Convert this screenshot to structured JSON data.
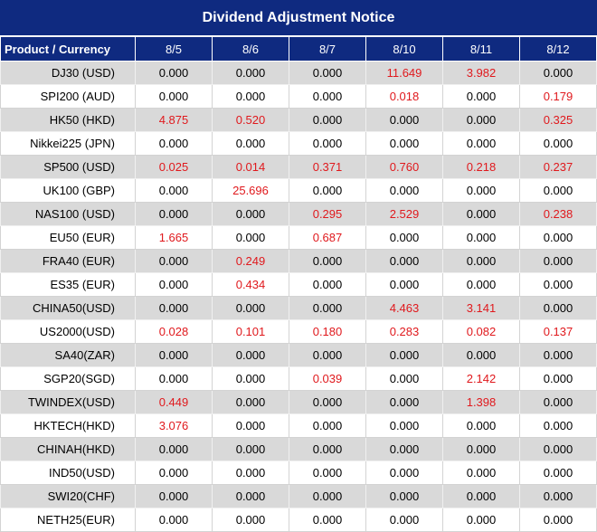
{
  "title": "Dividend Adjustment Notice",
  "colors": {
    "header_bg": "#0f2a80",
    "alt_row": "#d9d9d9",
    "nonzero": "#e0191d"
  },
  "header": [
    "Product / Currency",
    "8/5",
    "8/6",
    "8/7",
    "8/10",
    "8/11",
    "8/12"
  ],
  "rows": [
    {
      "product": "DJ30 (USD)",
      "values": [
        "0.000",
        "0.000",
        "0.000",
        "11.649",
        "3.982",
        "0.000"
      ]
    },
    {
      "product": "SPI200 (AUD)",
      "values": [
        "0.000",
        "0.000",
        "0.000",
        "0.018",
        "0.000",
        "0.179"
      ]
    },
    {
      "product": "HK50 (HKD)",
      "values": [
        "4.875",
        "0.520",
        "0.000",
        "0.000",
        "0.000",
        "0.325"
      ]
    },
    {
      "product": "Nikkei225 (JPN)",
      "values": [
        "0.000",
        "0.000",
        "0.000",
        "0.000",
        "0.000",
        "0.000"
      ]
    },
    {
      "product": "SP500 (USD)",
      "values": [
        "0.025",
        "0.014",
        "0.371",
        "0.760",
        "0.218",
        "0.237"
      ]
    },
    {
      "product": "UK100 (GBP)",
      "values": [
        "0.000",
        "25.696",
        "0.000",
        "0.000",
        "0.000",
        "0.000"
      ]
    },
    {
      "product": "NAS100 (USD)",
      "values": [
        "0.000",
        "0.000",
        "0.295",
        "2.529",
        "0.000",
        "0.238"
      ]
    },
    {
      "product": "EU50 (EUR)",
      "values": [
        "1.665",
        "0.000",
        "0.687",
        "0.000",
        "0.000",
        "0.000"
      ]
    },
    {
      "product": "FRA40 (EUR)",
      "values": [
        "0.000",
        "0.249",
        "0.000",
        "0.000",
        "0.000",
        "0.000"
      ]
    },
    {
      "product": "ES35 (EUR)",
      "values": [
        "0.000",
        "0.434",
        "0.000",
        "0.000",
        "0.000",
        "0.000"
      ]
    },
    {
      "product": "CHINA50(USD)",
      "values": [
        "0.000",
        "0.000",
        "0.000",
        "4.463",
        "3.141",
        "0.000"
      ]
    },
    {
      "product": "US2000(USD)",
      "values": [
        "0.028",
        "0.101",
        "0.180",
        "0.283",
        "0.082",
        "0.137"
      ]
    },
    {
      "product": "SA40(ZAR)",
      "values": [
        "0.000",
        "0.000",
        "0.000",
        "0.000",
        "0.000",
        "0.000"
      ]
    },
    {
      "product": "SGP20(SGD)",
      "values": [
        "0.000",
        "0.000",
        "0.039",
        "0.000",
        "2.142",
        "0.000"
      ]
    },
    {
      "product": "TWINDEX(USD)",
      "values": [
        "0.449",
        "0.000",
        "0.000",
        "0.000",
        "1.398",
        "0.000"
      ]
    },
    {
      "product": "HKTECH(HKD)",
      "values": [
        "3.076",
        "0.000",
        "0.000",
        "0.000",
        "0.000",
        "0.000"
      ]
    },
    {
      "product": "CHINAH(HKD)",
      "values": [
        "0.000",
        "0.000",
        "0.000",
        "0.000",
        "0.000",
        "0.000"
      ]
    },
    {
      "product": "IND50(USD)",
      "values": [
        "0.000",
        "0.000",
        "0.000",
        "0.000",
        "0.000",
        "0.000"
      ]
    },
    {
      "product": "SWI20(CHF)",
      "values": [
        "0.000",
        "0.000",
        "0.000",
        "0.000",
        "0.000",
        "0.000"
      ]
    },
    {
      "product": "NETH25(EUR)",
      "values": [
        "0.000",
        "0.000",
        "0.000",
        "0.000",
        "0.000",
        "0.000"
      ]
    }
  ]
}
